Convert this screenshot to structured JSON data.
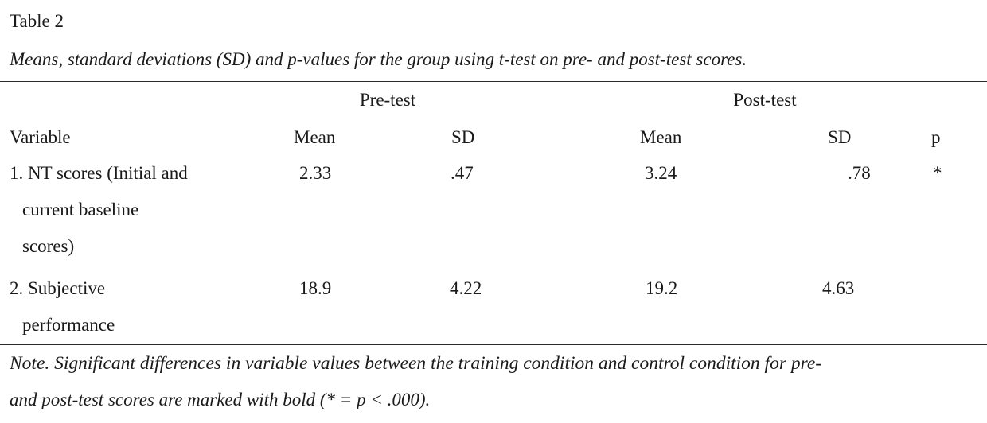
{
  "table_label": "Table 2",
  "caption": "Means, standard deviations (SD) and p-values for the group using t-test on pre- and post-test scores.",
  "group_headers": {
    "pre": "Pre-test",
    "post": "Post-test"
  },
  "column_headers": {
    "variable": "Variable",
    "pre_mean": "Mean",
    "pre_sd": "SD",
    "post_mean": "Mean",
    "post_sd": "SD",
    "p": "p"
  },
  "rows": [
    {
      "label_lines": [
        "1. NT scores (Initial and",
        "current baseline",
        "scores)"
      ],
      "pre_mean": "2.33",
      "pre_sd": ".47",
      "post_mean": "3.24",
      "post_sd": ".78",
      "p": "*"
    },
    {
      "label_lines": [
        "2. Subjective",
        "performance"
      ],
      "pre_mean": "18.9",
      "pre_sd": "4.22",
      "post_mean": "19.2",
      "post_sd": "4.63",
      "p": ""
    }
  ],
  "note_lines": [
    "Note. Significant differences in variable values between the training condition and control condition for pre-",
    "and post-test scores are marked with bold (* = p < .000)."
  ]
}
